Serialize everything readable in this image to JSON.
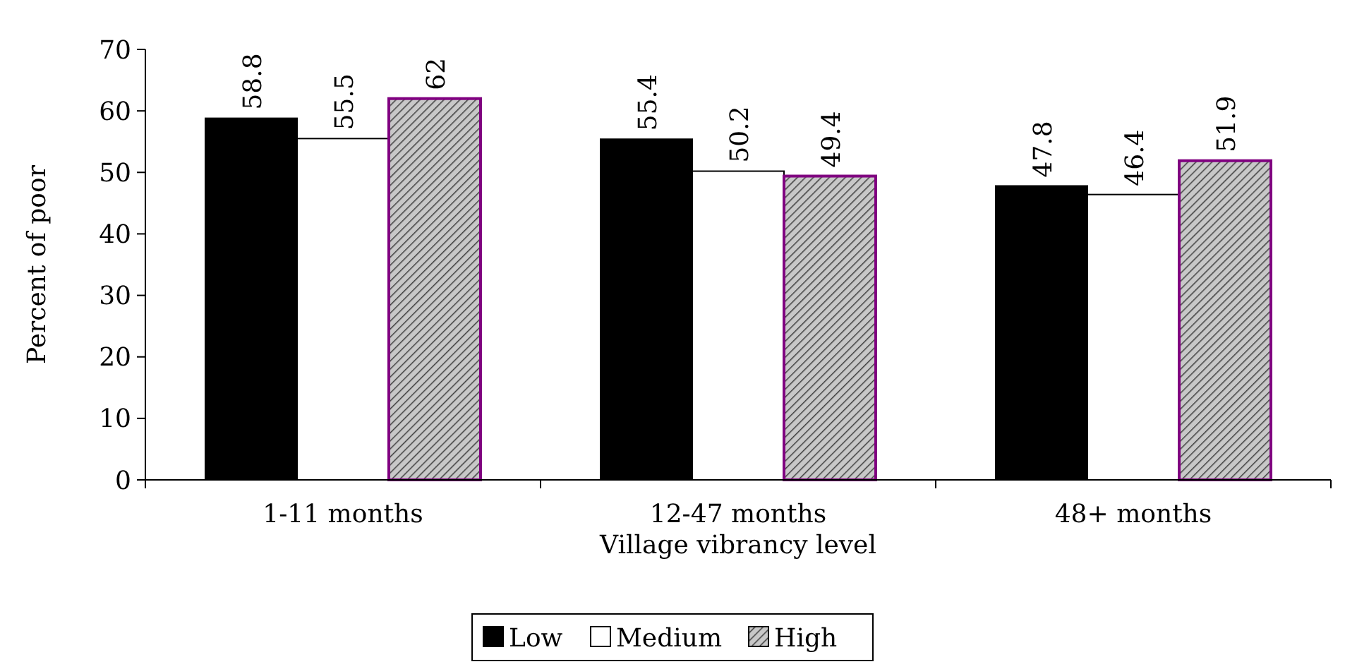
{
  "chart_data": {
    "type": "bar",
    "xlabel": "Village vibrancy level",
    "ylabel": "Percent of poor",
    "categories": [
      "1-11 months",
      "12-47 months",
      "48+ months"
    ],
    "series": [
      {
        "name": "Low",
        "color": "#000000",
        "values": [
          58.8,
          55.4,
          47.8
        ]
      },
      {
        "name": "Medium",
        "color": "#ffffff",
        "values": [
          55.5,
          50.2,
          46.4
        ]
      },
      {
        "name": "High",
        "color": "#800080",
        "values": [
          62,
          49.4,
          51.9
        ]
      }
    ],
    "ylim": [
      0,
      70
    ],
    "yticks": [
      0,
      10,
      20,
      30,
      40,
      50,
      60,
      70
    ],
    "grid": false,
    "legend": "bottom",
    "data_labels": true
  }
}
